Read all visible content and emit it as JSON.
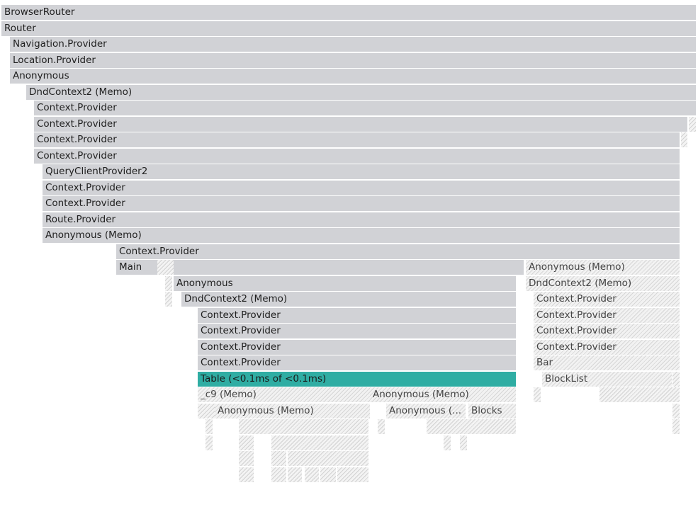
{
  "colors": {
    "bar": "#d1d2d6",
    "selected": "#2fada3",
    "hatch": "#d6d6d6",
    "background": "#ffffff"
  },
  "frames": [
    {
      "label": "BrowserRouter"
    },
    {
      "label": "Router"
    },
    {
      "label": "Navigation.Provider"
    },
    {
      "label": "Location.Provider"
    },
    {
      "label": "Anonymous"
    },
    {
      "label": "DndContext2 (Memo)"
    },
    {
      "label": "Context.Provider"
    },
    {
      "label": "Context.Provider"
    },
    {
      "label": "Context.Provider"
    },
    {
      "label": "Context.Provider"
    },
    {
      "label": "QueryClientProvider2"
    },
    {
      "label": "Context.Provider"
    },
    {
      "label": "Context.Provider"
    },
    {
      "label": "Route.Provider"
    },
    {
      "label": "Anonymous (Memo)"
    },
    {
      "label": "Context.Provider"
    },
    {
      "label": "Main"
    },
    {
      "label": "Anonymous (Memo)"
    },
    {
      "label": "Anonymous"
    },
    {
      "label": "DndContext2 (Memo)"
    },
    {
      "label": "DndContext2 (Memo)"
    },
    {
      "label": "Context.Provider"
    },
    {
      "label": "Context.Provider"
    },
    {
      "label": "Context.Provider"
    },
    {
      "label": "Context.Provider"
    },
    {
      "label": "Context.Provider"
    },
    {
      "label": "Context.Provider"
    },
    {
      "label": "Context.Provider"
    },
    {
      "label": "Context.Provider"
    },
    {
      "label": "Bar"
    },
    {
      "label": "Table (<0.1ms of <0.1ms)"
    },
    {
      "label": "BlockList"
    },
    {
      "label": "_c9 (Memo)"
    },
    {
      "label": "Anonymous (Memo)"
    },
    {
      "label": "Anonymous (Memo)"
    },
    {
      "label": "Anonymous (..."
    },
    {
      "label": "Blocks"
    }
  ]
}
